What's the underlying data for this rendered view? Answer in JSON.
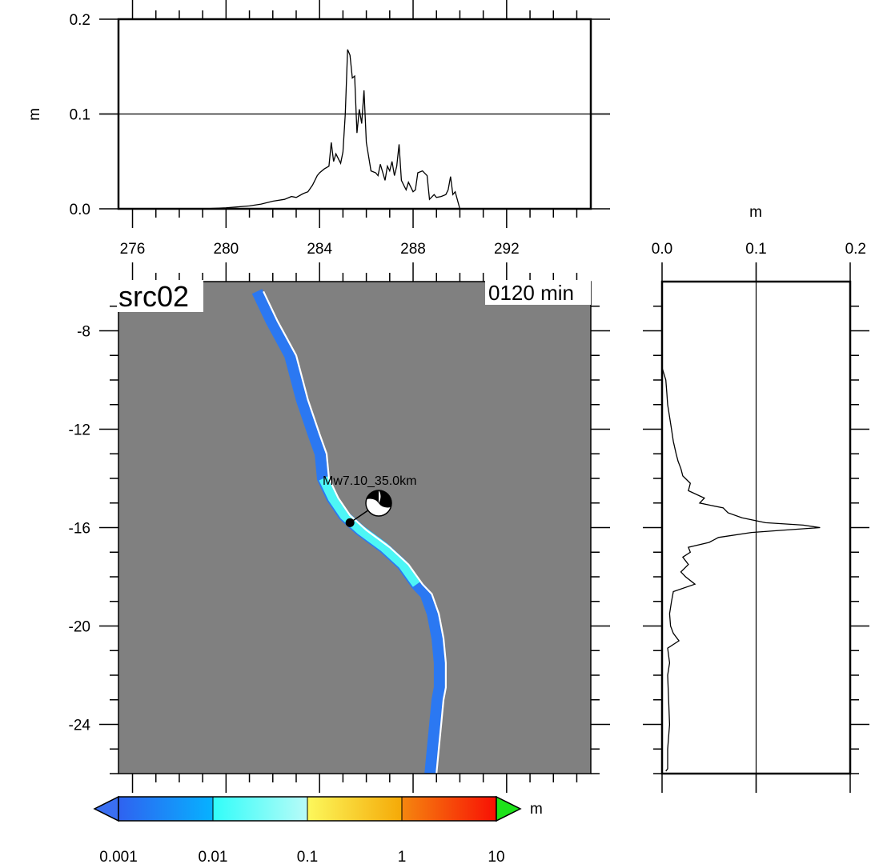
{
  "chart_data": [
    {
      "type": "line",
      "panel": "top-profile",
      "xlabel": "",
      "ylabel": "m",
      "xlim": [
        275.4,
        295.6
      ],
      "ylim": [
        0,
        0.2
      ],
      "x_ticks": [
        "276",
        "280",
        "284",
        "288",
        "292"
      ],
      "y_ticks": [
        "0.0",
        "0.1",
        "0.2"
      ],
      "gridline_y": 0.1,
      "series": [
        {
          "x": [
            279.0,
            280.0,
            281.0,
            281.5,
            282.0,
            282.5,
            282.8,
            283.0,
            283.3,
            283.5,
            283.7,
            283.9,
            284.0,
            284.2,
            284.4,
            284.5,
            284.6,
            284.7,
            284.9,
            285.0,
            285.1,
            285.2,
            285.3,
            285.4,
            285.5,
            285.6,
            285.7,
            285.8,
            285.9,
            286.0,
            286.1,
            286.2,
            286.4,
            286.5,
            286.6,
            286.8,
            286.9,
            287.0,
            287.1,
            287.2,
            287.3,
            287.4,
            287.5,
            287.6,
            287.7,
            287.8,
            288.0,
            288.1,
            288.2,
            288.4,
            288.6,
            288.7,
            288.9,
            289.0,
            289.2,
            289.4,
            289.5,
            289.6,
            289.7,
            289.8,
            290.0
          ],
          "y": [
            0.0,
            0.001,
            0.003,
            0.005,
            0.008,
            0.01,
            0.013,
            0.012,
            0.016,
            0.018,
            0.025,
            0.035,
            0.038,
            0.042,
            0.045,
            0.07,
            0.05,
            0.058,
            0.048,
            0.06,
            0.1,
            0.168,
            0.162,
            0.138,
            0.14,
            0.08,
            0.105,
            0.09,
            0.125,
            0.07,
            0.055,
            0.04,
            0.038,
            0.035,
            0.047,
            0.03,
            0.045,
            0.04,
            0.05,
            0.035,
            0.045,
            0.068,
            0.03,
            0.025,
            0.02,
            0.028,
            0.018,
            0.02,
            0.038,
            0.04,
            0.035,
            0.01,
            0.015,
            0.012,
            0.013,
            0.015,
            0.02,
            0.034,
            0.015,
            0.018,
            0.0
          ]
        }
      ]
    },
    {
      "type": "heatmap",
      "panel": "map",
      "xlim": [
        275.4,
        295.6
      ],
      "ylim": [
        -26,
        -6
      ],
      "y_ticks": [
        "-8",
        "-12",
        "-16",
        "-20",
        "-24"
      ],
      "y_tick_values": [
        -8,
        -12,
        -16,
        -20,
        -24
      ],
      "coastline": {
        "x": [
          281.6,
          282.2,
          283.0,
          283.5,
          284.0,
          284.3,
          284.4,
          284.8,
          285.3,
          286.0,
          287.0,
          287.8,
          288.4,
          288.8,
          289.1,
          289.3,
          289.4,
          289.4,
          289.3,
          289.2,
          289.1,
          289.0
        ],
        "y": [
          -6.4,
          -7.6,
          -9.0,
          -10.8,
          -12.2,
          -13.0,
          -14.0,
          -14.8,
          -15.5,
          -16.1,
          -16.8,
          -17.5,
          -18.3,
          -18.7,
          -19.5,
          -20.5,
          -21.5,
          -22.5,
          -23.0,
          -24.0,
          -25.0,
          -26.0
        ]
      },
      "colorbar": {
        "unit": "m",
        "labels": [
          "0.001",
          "0.01",
          "0.1",
          "1",
          "10"
        ],
        "colors": {
          "0.001-0.01": [
            "#2f62f0",
            "#06b2ff"
          ],
          "0.01-0.1": [
            "#31fdf9",
            "#b8fbf8"
          ],
          "0.1-1": [
            "#fcf85c",
            "#f5a907"
          ],
          "1-10": [
            "#f5860f",
            "#f81004"
          ],
          "under": "#3a6ff2",
          "over": "#1de21a"
        }
      },
      "source_label": "Mw7.10_35.0km",
      "epicenter": {
        "x": 285.3,
        "y": -15.8
      },
      "corner_label_left": "src02",
      "corner_label_right": "0120 min"
    },
    {
      "type": "line",
      "panel": "right-profile",
      "xlabel": "m",
      "xlim": [
        0,
        0.2
      ],
      "ylim": [
        -26,
        -6
      ],
      "x_ticks": [
        "0.0",
        "0.1",
        "0.2"
      ],
      "gridline_x": 0.1,
      "series": [
        {
          "y": [
            -9.5,
            -10.0,
            -10.5,
            -11.0,
            -11.5,
            -12.0,
            -12.5,
            -13.0,
            -13.3,
            -13.6,
            -13.9,
            -14.2,
            -14.5,
            -14.8,
            -15.0,
            -15.2,
            -15.4,
            -15.6,
            -15.8,
            -15.9,
            -16.0,
            -16.1,
            -16.2,
            -16.4,
            -16.6,
            -16.8,
            -17.0,
            -17.2,
            -17.5,
            -17.8,
            -18.0,
            -18.3,
            -18.6,
            -19.0,
            -19.5,
            -20.0,
            -20.3,
            -20.6,
            -20.9,
            -21.5,
            -22.0,
            -23.0,
            -24.0,
            -25.0,
            -25.8
          ],
          "x": [
            0.0,
            0.004,
            0.005,
            0.006,
            0.008,
            0.01,
            0.012,
            0.015,
            0.017,
            0.02,
            0.022,
            0.03,
            0.028,
            0.045,
            0.04,
            0.065,
            0.07,
            0.085,
            0.11,
            0.15,
            0.168,
            0.13,
            0.095,
            0.06,
            0.05,
            0.028,
            0.03,
            0.022,
            0.028,
            0.02,
            0.025,
            0.035,
            0.012,
            0.01,
            0.008,
            0.009,
            0.012,
            0.018,
            0.006,
            0.008,
            0.006,
            0.007,
            0.008,
            0.006,
            0.006
          ]
        }
      ]
    }
  ]
}
